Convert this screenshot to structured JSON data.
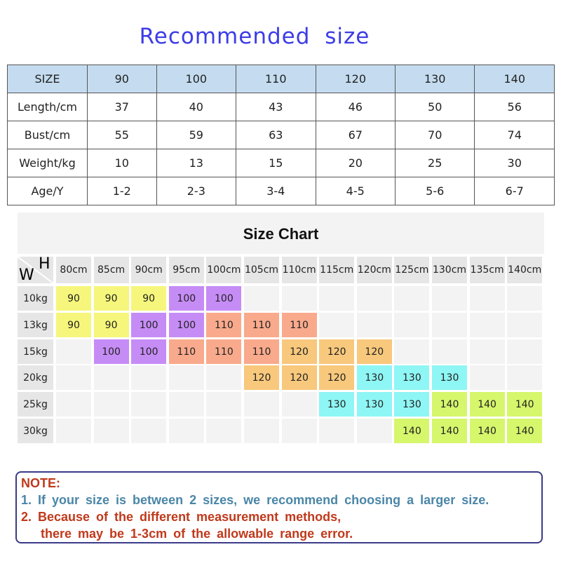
{
  "title": "Recommended  size",
  "size_table": {
    "header": [
      "SIZE",
      "90",
      "100",
      "110",
      "120",
      "130",
      "140"
    ],
    "rows": [
      [
        "Length/cm",
        "37",
        "40",
        "43",
        "46",
        "50",
        "56"
      ],
      [
        "Bust/cm",
        "55",
        "59",
        "63",
        "67",
        "70",
        "74"
      ],
      [
        "Weight/kg",
        "10",
        "13",
        "15",
        "20",
        "25",
        "30"
      ],
      [
        "Age/Y",
        "1-2",
        "2-3",
        "3-4",
        "4-5",
        "5-6",
        "6-7"
      ]
    ]
  },
  "size_chart": {
    "title": "Size Chart",
    "corner_h": "H",
    "corner_w": "W",
    "heights": [
      "80cm",
      "85cm",
      "90cm",
      "95cm",
      "100cm",
      "105cm",
      "110cm",
      "115cm",
      "120cm",
      "125cm",
      "130cm",
      "135cm",
      "140cm"
    ],
    "weights": [
      "10kg",
      "13kg",
      "15kg",
      "20kg",
      "25kg",
      "30kg"
    ],
    "cells": [
      [
        "90",
        "90",
        "90",
        "100",
        "100",
        "",
        "",
        "",
        "",
        "",
        "",
        "",
        ""
      ],
      [
        "90",
        "90",
        "100",
        "100",
        "110",
        "110",
        "110",
        "",
        "",
        "",
        "",
        "",
        ""
      ],
      [
        "",
        "100",
        "100",
        "110",
        "110",
        "110",
        "120",
        "120",
        "120",
        "",
        "",
        "",
        ""
      ],
      [
        "",
        "",
        "",
        "",
        "",
        "120",
        "120",
        "120",
        "130",
        "130",
        "130",
        "",
        ""
      ],
      [
        "",
        "",
        "",
        "",
        "",
        "",
        "",
        "130",
        "130",
        "130",
        "140",
        "140",
        "140"
      ],
      [
        "",
        "",
        "",
        "",
        "",
        "",
        "",
        "",
        "",
        "140",
        "140",
        "140",
        "140"
      ]
    ],
    "colors": {
      "90": "#f6f67c",
      "100": "#c68cf6",
      "110": "#f9aa8c",
      "120": "#f8c87c",
      "130": "#8ef6f4",
      "140": "#d6f66c"
    }
  },
  "note": {
    "heading": "NOTE:",
    "line1": "1.  If your  size is between 2 sizes, we recommend choosing a larger size.",
    "line2": "2.  Because of the different measurement  methods,",
    "line3": "there may be 1-3cm of the allowable range error."
  }
}
